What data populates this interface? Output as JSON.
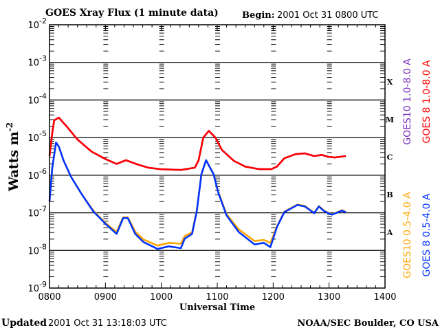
{
  "header": {
    "title": "GOES Xray Flux (1 minute data)",
    "begin_label": "Begin:",
    "begin_value": "2001 Oct 31 0800 UTC"
  },
  "footer": {
    "updated_label": "Updated",
    "updated_value": "2001 Oct 31 13:18:03 UTC",
    "credit": "NOAA/SEC Boulder, CO USA"
  },
  "chart_data": {
    "type": "line",
    "title": "GOES Xray Flux (1 minute data)",
    "xlabel": "Universal Time",
    "ylabel": "Watts m",
    "ylabel_sup": "-2",
    "x_units": "minutes since 0800 UTC",
    "xlim": [
      0,
      360
    ],
    "x_ticks": [
      {
        "value": 0,
        "label": "0800"
      },
      {
        "value": 60,
        "label": "0900"
      },
      {
        "value": 120,
        "label": "1000"
      },
      {
        "value": 180,
        "label": "1100"
      },
      {
        "value": 240,
        "label": "1200"
      },
      {
        "value": 300,
        "label": "1300"
      },
      {
        "value": 360,
        "label": "1400"
      }
    ],
    "y_scale": "log10",
    "ylim_exponent": [
      -9,
      -2
    ],
    "y_ticks": [
      {
        "exp": -2,
        "base": "10",
        "sup": "-2"
      },
      {
        "exp": -3,
        "base": "10",
        "sup": "-3"
      },
      {
        "exp": -4,
        "base": "10",
        "sup": "-4"
      },
      {
        "exp": -5,
        "base": "10",
        "sup": "-5"
      },
      {
        "exp": -6,
        "base": "10",
        "sup": "-6"
      },
      {
        "exp": -7,
        "base": "10",
        "sup": "-7"
      },
      {
        "exp": -8,
        "base": "10",
        "sup": "-8"
      },
      {
        "exp": -9,
        "base": "10",
        "sup": "-9"
      }
    ],
    "flare_classes": [
      {
        "label": "X",
        "band_exp": -3.5
      },
      {
        "label": "M",
        "band_exp": -4.5
      },
      {
        "label": "C",
        "band_exp": -5.5
      },
      {
        "label": "B",
        "band_exp": -6.5
      },
      {
        "label": "A",
        "band_exp": -7.5
      }
    ],
    "grid": "horizontal at each decade",
    "legend_placement": "right, vertical text",
    "series": [
      {
        "name": "GOES10 1.0-8.0 A",
        "color": "#7b2fbf",
        "x": [
          0,
          3,
          5,
          10,
          18,
          30,
          45,
          60,
          72,
          82,
          94,
          106,
          119,
          141,
          156,
          160,
          165,
          171,
          178,
          185,
          198,
          210,
          225,
          238,
          244,
          252,
          264,
          274,
          284,
          292,
          299,
          306,
          318
        ],
        "log10_flux": [
          -5.49,
          -4.87,
          -4.54,
          -4.47,
          -4.69,
          -5.05,
          -5.37,
          -5.57,
          -5.7,
          -5.6,
          -5.71,
          -5.8,
          -5.84,
          -5.86,
          -5.8,
          -5.6,
          -5.0,
          -4.82,
          -5.0,
          -5.33,
          -5.62,
          -5.77,
          -5.84,
          -5.84,
          -5.77,
          -5.55,
          -5.44,
          -5.42,
          -5.49,
          -5.46,
          -5.51,
          -5.53,
          -5.49
        ]
      },
      {
        "name": "GOES 8 1.0-8.0 A",
        "color": "#ff0000",
        "x": [
          0,
          3,
          5,
          10,
          18,
          30,
          45,
          60,
          72,
          82,
          94,
          106,
          119,
          141,
          156,
          160,
          165,
          171,
          178,
          185,
          198,
          210,
          225,
          238,
          244,
          252,
          264,
          274,
          284,
          292,
          299,
          306,
          318
        ],
        "log10_flux": [
          -5.49,
          -4.87,
          -4.54,
          -4.47,
          -4.69,
          -5.05,
          -5.37,
          -5.57,
          -5.7,
          -5.6,
          -5.71,
          -5.8,
          -5.84,
          -5.86,
          -5.8,
          -5.6,
          -5.0,
          -4.82,
          -5.0,
          -5.33,
          -5.62,
          -5.77,
          -5.84,
          -5.84,
          -5.77,
          -5.55,
          -5.44,
          -5.42,
          -5.49,
          -5.46,
          -5.51,
          -5.53,
          -5.49
        ]
      },
      {
        "name": "GOES10 0.5-4.0 A",
        "color": "#ffa500",
        "x": [
          0,
          3,
          7,
          10,
          15,
          23,
          35,
          47,
          60,
          72,
          79,
          84,
          92,
          101,
          116,
          128,
          141,
          145,
          153,
          158,
          163,
          168,
          176,
          181,
          190,
          203,
          220,
          230,
          237,
          244,
          252,
          266,
          274,
          284,
          289,
          295,
          303,
          314,
          318
        ],
        "log10_flux": [
          -6.7,
          -5.79,
          -5.13,
          -5.24,
          -5.6,
          -6.04,
          -6.52,
          -6.94,
          -7.27,
          -7.51,
          -7.12,
          -7.12,
          -7.5,
          -7.71,
          -7.87,
          -7.8,
          -7.82,
          -7.62,
          -7.52,
          -6.94,
          -5.97,
          -5.6,
          -5.97,
          -6.44,
          -7.04,
          -7.44,
          -7.75,
          -7.72,
          -7.8,
          -7.36,
          -6.97,
          -6.78,
          -6.82,
          -7.0,
          -6.82,
          -6.95,
          -7.04,
          -6.93,
          -6.98
        ]
      },
      {
        "name": "GOES 8 0.5-4.0 A",
        "color": "#0033ff",
        "x": [
          0,
          3,
          7,
          10,
          15,
          23,
          35,
          47,
          60,
          72,
          79,
          84,
          92,
          101,
          116,
          128,
          141,
          145,
          153,
          158,
          163,
          168,
          176,
          181,
          190,
          203,
          220,
          230,
          237,
          244,
          252,
          266,
          274,
          284,
          289,
          295,
          303,
          314,
          318
        ],
        "log10_flux": [
          -6.7,
          -5.79,
          -5.13,
          -5.24,
          -5.6,
          -6.04,
          -6.52,
          -6.96,
          -7.29,
          -7.56,
          -7.14,
          -7.14,
          -7.56,
          -7.78,
          -7.96,
          -7.89,
          -7.94,
          -7.69,
          -7.56,
          -6.96,
          -5.97,
          -5.6,
          -5.97,
          -6.46,
          -7.07,
          -7.51,
          -7.84,
          -7.8,
          -7.91,
          -7.38,
          -6.98,
          -6.79,
          -6.83,
          -7.01,
          -6.83,
          -6.96,
          -7.05,
          -6.94,
          -6.99
        ]
      }
    ]
  }
}
